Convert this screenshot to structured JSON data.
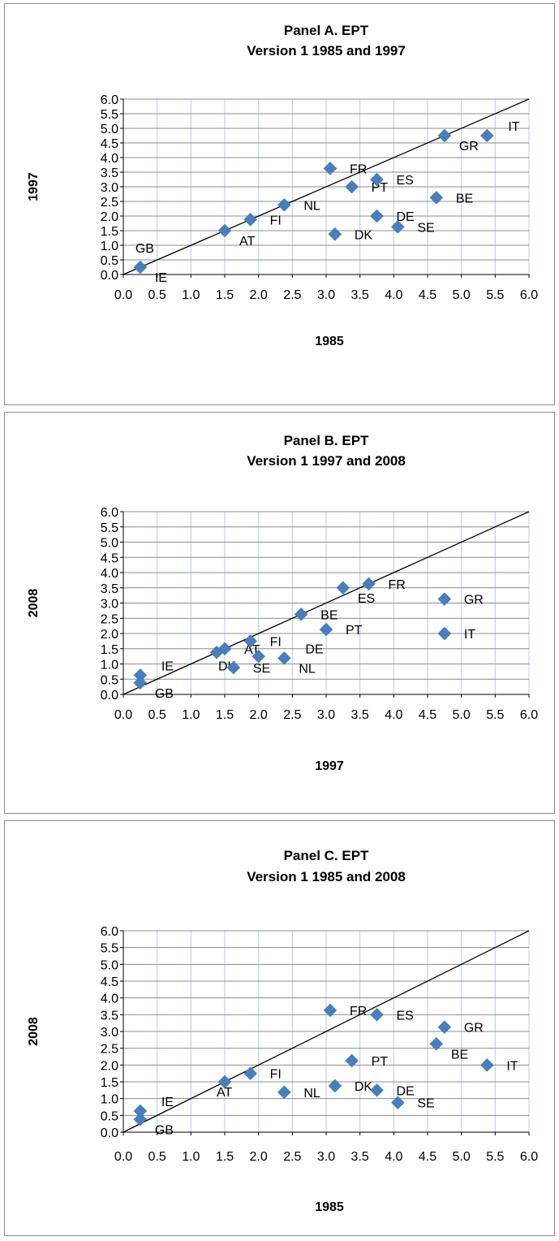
{
  "chart_data": [
    {
      "type": "scatter",
      "title_line1": "Panel A. EPT",
      "title_line2": "Version 1 1985 and 1997",
      "xlabel": "1985",
      "ylabel": "1997",
      "xlim": [
        0,
        6
      ],
      "ylim": [
        0,
        6
      ],
      "x_ticks": [
        "0.0",
        "0.5",
        "1.0",
        "1.5",
        "2.0",
        "2.5",
        "3.0",
        "3.5",
        "4.0",
        "4.5",
        "5.0",
        "5.5",
        "6.0"
      ],
      "y_ticks": [
        "0.0",
        "0.5",
        "1.0",
        "1.5",
        "2.0",
        "2.5",
        "3.0",
        "3.5",
        "4.0",
        "4.5",
        "5.0",
        "5.5",
        "6.0"
      ],
      "grid": true,
      "diagonal_line": true,
      "marker_color": "#4a7ebb",
      "points": [
        {
          "label": "GB",
          "x": 0.25,
          "y": 0.25,
          "label_pos": "above"
        },
        {
          "label": "IE",
          "x": 0.25,
          "y": 0.25,
          "label_pos": "right-below"
        },
        {
          "label": "AT",
          "x": 1.5,
          "y": 1.5,
          "label_pos": "right-below"
        },
        {
          "label": "FI",
          "x": 1.88,
          "y": 1.88,
          "label_pos": "right"
        },
        {
          "label": "NL",
          "x": 2.38,
          "y": 2.38,
          "label_pos": "right"
        },
        {
          "label": "FR",
          "x": 3.06,
          "y": 3.63,
          "label_pos": "right"
        },
        {
          "label": "PT",
          "x": 3.38,
          "y": 3.0,
          "label_pos": "right"
        },
        {
          "label": "ES",
          "x": 3.75,
          "y": 3.25,
          "label_pos": "right"
        },
        {
          "label": "DK",
          "x": 3.13,
          "y": 1.38,
          "label_pos": "right"
        },
        {
          "label": "DE",
          "x": 3.75,
          "y": 2.0,
          "label_pos": "right"
        },
        {
          "label": "SE",
          "x": 4.06,
          "y": 1.63,
          "label_pos": "right"
        },
        {
          "label": "GR",
          "x": 4.75,
          "y": 4.75,
          "label_pos": "right-below"
        },
        {
          "label": "BE",
          "x": 4.63,
          "y": 2.63,
          "label_pos": "right"
        },
        {
          "label": "IT",
          "x": 5.38,
          "y": 4.75,
          "label_pos": "right-above"
        }
      ]
    },
    {
      "type": "scatter",
      "title_line1": "Panel B. EPT",
      "title_line2": "Version 1 1997 and 2008",
      "xlabel": "1997",
      "ylabel": "2008",
      "xlim": [
        0,
        6
      ],
      "ylim": [
        0,
        6
      ],
      "x_ticks": [
        "0.0",
        "0.5",
        "1.0",
        "1.5",
        "2.0",
        "2.5",
        "3.0",
        "3.5",
        "4.0",
        "4.5",
        "5.0",
        "5.5",
        "6.0"
      ],
      "y_ticks": [
        "0.0",
        "0.5",
        "1.0",
        "1.5",
        "2.0",
        "2.5",
        "3.0",
        "3.5",
        "4.0",
        "4.5",
        "5.0",
        "5.5",
        "6.0"
      ],
      "grid": true,
      "diagonal_line": true,
      "marker_color": "#4a7ebb",
      "points": [
        {
          "label": "IE",
          "x": 0.25,
          "y": 0.63,
          "label_pos": "right-above"
        },
        {
          "label": "GB",
          "x": 0.25,
          "y": 0.38,
          "label_pos": "right-below"
        },
        {
          "label": "DK",
          "x": 1.38,
          "y": 1.38,
          "label_pos": "below"
        },
        {
          "label": "AT",
          "x": 1.5,
          "y": 1.5,
          "label_pos": "right"
        },
        {
          "label": "SE",
          "x": 1.63,
          "y": 0.88,
          "label_pos": "right"
        },
        {
          "label": "FI",
          "x": 1.88,
          "y": 1.75,
          "label_pos": "right"
        },
        {
          "label": "",
          "x": 2.0,
          "y": 1.25,
          "label_pos": "none"
        },
        {
          "label": "DE",
          "x": 2.38,
          "y": 1.19,
          "label_pos": "right-above"
        },
        {
          "label": "NL",
          "x": 2.38,
          "y": 1.19,
          "label_pos": "right-below"
        },
        {
          "label": "BE",
          "x": 2.63,
          "y": 2.63,
          "label_pos": "right"
        },
        {
          "label": "PT",
          "x": 3.0,
          "y": 2.13,
          "label_pos": "right"
        },
        {
          "label": "ES",
          "x": 3.25,
          "y": 3.5,
          "label_pos": "right-below"
        },
        {
          "label": "FR",
          "x": 3.63,
          "y": 3.63,
          "label_pos": "right"
        },
        {
          "label": "GR",
          "x": 4.75,
          "y": 3.13,
          "label_pos": "right"
        },
        {
          "label": "IT",
          "x": 4.75,
          "y": 2.0,
          "label_pos": "right"
        }
      ]
    },
    {
      "type": "scatter",
      "title_line1": "Panel C. EPT",
      "title_line2": "Version 1 1985 and 2008",
      "xlabel": "1985",
      "ylabel": "2008",
      "xlim": [
        0,
        6
      ],
      "ylim": [
        0,
        6
      ],
      "x_ticks": [
        "0.0",
        "0.5",
        "1.0",
        "1.5",
        "2.0",
        "2.5",
        "3.0",
        "3.5",
        "4.0",
        "4.5",
        "5.0",
        "5.5",
        "6.0"
      ],
      "y_ticks": [
        "0.0",
        "0.5",
        "1.0",
        "1.5",
        "2.0",
        "2.5",
        "3.0",
        "3.5",
        "4.0",
        "4.5",
        "5.0",
        "5.5",
        "6.0"
      ],
      "grid": true,
      "diagonal_line": true,
      "marker_color": "#4a7ebb",
      "points": [
        {
          "label": "IE",
          "x": 0.25,
          "y": 0.63,
          "label_pos": "right-above"
        },
        {
          "label": "GB",
          "x": 0.25,
          "y": 0.38,
          "label_pos": "right-below"
        },
        {
          "label": "AT",
          "x": 1.5,
          "y": 1.5,
          "label_pos": "right-below-far"
        },
        {
          "label": "FI",
          "x": 1.88,
          "y": 1.75,
          "label_pos": "right"
        },
        {
          "label": "NL",
          "x": 2.38,
          "y": 1.19,
          "label_pos": "right"
        },
        {
          "label": "FR",
          "x": 3.06,
          "y": 3.63,
          "label_pos": "right"
        },
        {
          "label": "ES",
          "x": 3.75,
          "y": 3.5,
          "label_pos": "right"
        },
        {
          "label": "PT",
          "x": 3.38,
          "y": 2.13,
          "label_pos": "right"
        },
        {
          "label": "DK",
          "x": 3.13,
          "y": 1.38,
          "label_pos": "right"
        },
        {
          "label": "DE",
          "x": 3.75,
          "y": 1.25,
          "label_pos": "right"
        },
        {
          "label": "SE",
          "x": 4.06,
          "y": 0.88,
          "label_pos": "right"
        },
        {
          "label": "GR",
          "x": 4.75,
          "y": 3.13,
          "label_pos": "right"
        },
        {
          "label": "BE",
          "x": 4.63,
          "y": 2.63,
          "label_pos": "right-below"
        },
        {
          "label": "IT",
          "x": 5.38,
          "y": 2.0,
          "label_pos": "right"
        }
      ]
    }
  ]
}
